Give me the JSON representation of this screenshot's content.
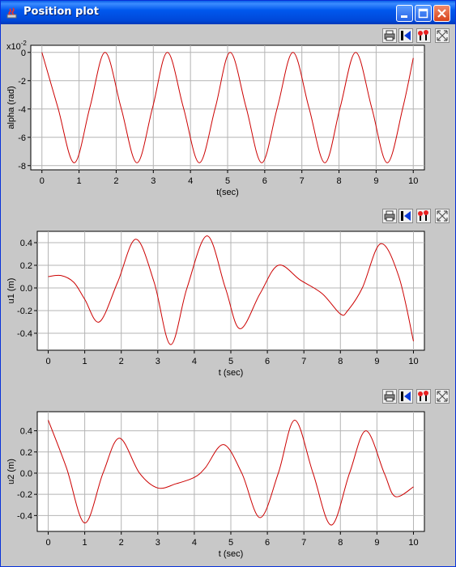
{
  "window": {
    "title": "Position plot"
  },
  "toolbar_icons": [
    "print-icon",
    "reset-axes-icon",
    "fill-icon",
    "zoom-fit-icon"
  ],
  "colors": {
    "line": "#cc0000",
    "grid": "#b4b4b4",
    "plot_bg": "#ffffff",
    "window_bg": "#c8c8c8",
    "titlebar": "#0054e3"
  },
  "chart_data": [
    {
      "type": "line",
      "xlabel": "t(sec)",
      "ylabel": "alpha (rad)",
      "multiplier": {
        "base": "x10",
        "exp": "-2"
      },
      "xlim": [
        -0.3,
        10.3
      ],
      "ylim": [
        -8.3,
        0.5
      ],
      "xticks": [
        "0",
        "1",
        "2",
        "3",
        "4",
        "5",
        "6",
        "7",
        "8",
        "9",
        "10"
      ],
      "yticks": [
        "0",
        "-2",
        "-4",
        "-6",
        "-8"
      ],
      "ytick_values": [
        0,
        -2,
        -4,
        -6,
        -8
      ],
      "grid": true,
      "series": [
        {
          "color": "#cc0000",
          "x": [
            0,
            0.43,
            0.87,
            1.29,
            1.7,
            2.13,
            2.56,
            2.98,
            3.38,
            3.81,
            4.24,
            4.67,
            5.07,
            5.5,
            5.92,
            6.34,
            6.76,
            7.19,
            7.62,
            8.03,
            8.45,
            8.88,
            9.3,
            9.72,
            10
          ],
          "y": [
            0,
            -3.9,
            -7.8,
            -3.9,
            0,
            -3.9,
            -7.8,
            -3.9,
            0,
            -3.9,
            -7.8,
            -3.9,
            0,
            -3.9,
            -7.8,
            -3.9,
            0,
            -3.9,
            -7.8,
            -3.9,
            0,
            -3.9,
            -7.8,
            -3.9,
            -0.4
          ]
        }
      ]
    },
    {
      "type": "line",
      "xlabel": "t (sec)",
      "ylabel": "u1 (m)",
      "xlim": [
        -0.3,
        10.3
      ],
      "ylim": [
        -0.55,
        0.5
      ],
      "xticks": [
        "0",
        "1",
        "2",
        "3",
        "4",
        "5",
        "6",
        "7",
        "8",
        "9",
        "10"
      ],
      "yticks": [
        "0.4",
        "0.2",
        "0.0",
        "-0.2",
        "-0.4"
      ],
      "ytick_values": [
        0.4,
        0.2,
        0.0,
        -0.2,
        -0.4
      ],
      "grid": true,
      "series": [
        {
          "color": "#cc0000",
          "x": [
            0,
            0.35,
            0.7,
            1.0,
            1.4,
            1.9,
            2.4,
            2.9,
            3.35,
            3.8,
            4.35,
            4.85,
            5.25,
            5.8,
            6.3,
            6.9,
            7.5,
            8.0,
            8.2,
            8.6,
            9.1,
            9.6,
            10
          ],
          "y": [
            0.1,
            0.11,
            0.05,
            -0.1,
            -0.3,
            0.05,
            0.43,
            0.05,
            -0.5,
            0.0,
            0.46,
            0.0,
            -0.36,
            -0.05,
            0.2,
            0.07,
            -0.05,
            -0.23,
            -0.2,
            0.0,
            0.39,
            0.1,
            -0.47
          ]
        }
      ]
    },
    {
      "type": "line",
      "xlabel": "t (sec)",
      "ylabel": "u2 (m)",
      "xlim": [
        -0.3,
        10.3
      ],
      "ylim": [
        -0.55,
        0.58
      ],
      "xticks": [
        "0",
        "1",
        "2",
        "3",
        "4",
        "5",
        "6",
        "7",
        "8",
        "9",
        "10"
      ],
      "yticks": [
        "0.4",
        "0.2",
        "0.0",
        "-0.2",
        "-0.4"
      ],
      "ytick_values": [
        0.4,
        0.2,
        0.0,
        -0.2,
        -0.4
      ],
      "grid": true,
      "series": [
        {
          "color": "#cc0000",
          "x": [
            0,
            0.5,
            1.0,
            1.5,
            1.95,
            2.5,
            3.0,
            3.5,
            4.0,
            4.3,
            4.8,
            5.3,
            5.8,
            6.3,
            6.75,
            7.25,
            7.75,
            8.25,
            8.7,
            9.2,
            9.5,
            10
          ],
          "y": [
            0.5,
            0.05,
            -0.47,
            0.0,
            0.33,
            0.0,
            -0.14,
            -0.1,
            -0.04,
            0.05,
            0.27,
            0.0,
            -0.42,
            0.0,
            0.5,
            0.0,
            -0.49,
            0.0,
            0.4,
            0.0,
            -0.22,
            -0.13
          ]
        }
      ]
    }
  ]
}
